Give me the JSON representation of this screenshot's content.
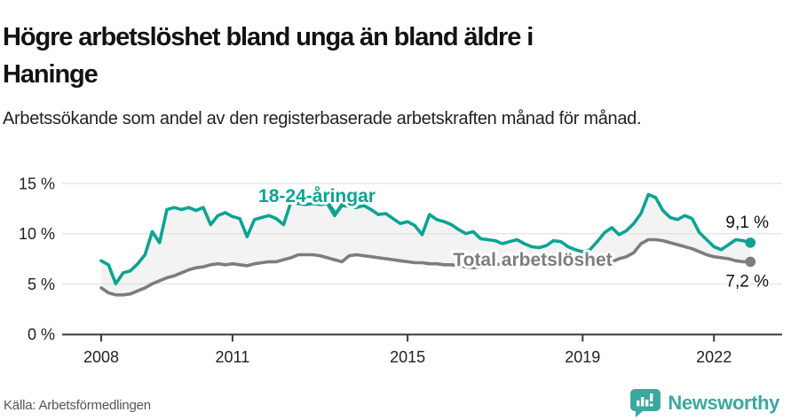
{
  "header": {
    "title": "Högre arbetslöshet bland unga än bland äldre i Haninge",
    "subtitle": "Arbetssökande som andel av den registerbaserade arbetskraften månad för månad."
  },
  "footer": {
    "source": "Källa: Arbetsförmedlingen",
    "brand": "Newsworthy"
  },
  "colors": {
    "youth": "#0ca392",
    "total": "#7d7d7d",
    "band_fill": "#f3f3f3",
    "gridline": "#e0e0e0",
    "axis": "#3a3a3a",
    "tick_text": "#222222",
    "value_text": "#111111",
    "brand_teal": "#3ba89f"
  },
  "chart_data": {
    "type": "line",
    "x_start": 2008.0,
    "x_step": 0.166667,
    "xlim": [
      2008,
      2022.85
    ],
    "ylim": [
      0,
      15.5
    ],
    "grid": true,
    "x_axis": {
      "ticks": [
        2008,
        2011,
        2015,
        2019,
        2022
      ],
      "labels": [
        "2008",
        "2011",
        "2015",
        "2019",
        "2022"
      ]
    },
    "y_axis": {
      "ticks": [
        0,
        5,
        10,
        15
      ],
      "labels": [
        "0 %",
        "5 %",
        "10 %",
        "15 %"
      ]
    },
    "series": [
      {
        "name": "18-24-åringar",
        "end_label": "9,1 %",
        "values": [
          7.3,
          6.9,
          5.0,
          6.1,
          6.3,
          7.0,
          7.9,
          10.2,
          9.1,
          12.4,
          12.6,
          12.4,
          12.6,
          12.3,
          12.6,
          10.9,
          11.8,
          12.1,
          11.7,
          11.5,
          9.7,
          11.4,
          11.6,
          11.8,
          11.5,
          10.9,
          13.1,
          13.0,
          12.9,
          13.0,
          12.9,
          13.0,
          11.8,
          12.8,
          12.7,
          12.6,
          12.8,
          12.4,
          11.9,
          12.0,
          11.5,
          11.0,
          11.2,
          10.8,
          9.9,
          11.9,
          11.4,
          11.2,
          10.9,
          10.4,
          10.0,
          10.2,
          9.5,
          9.4,
          9.3,
          9.0,
          9.2,
          9.4,
          9.0,
          8.7,
          8.6,
          8.8,
          9.3,
          9.2,
          8.7,
          8.4,
          8.2,
          8.4,
          9.2,
          10.1,
          10.6,
          9.9,
          10.3,
          11.0,
          12.0,
          13.9,
          13.6,
          12.3,
          11.6,
          11.4,
          11.8,
          11.5,
          10.1,
          9.4,
          8.7,
          8.4,
          8.9,
          9.4,
          9.3,
          9.1
        ]
      },
      {
        "name": "Total arbetslöshet",
        "end_label": "7,2 %",
        "values": [
          4.6,
          4.1,
          3.9,
          3.9,
          4.0,
          4.3,
          4.6,
          5.0,
          5.3,
          5.6,
          5.8,
          6.1,
          6.4,
          6.6,
          6.7,
          6.9,
          7.0,
          6.9,
          7.0,
          6.9,
          6.8,
          7.0,
          7.1,
          7.2,
          7.2,
          7.4,
          7.6,
          7.9,
          7.9,
          7.9,
          7.8,
          7.6,
          7.4,
          7.2,
          7.8,
          7.9,
          7.8,
          7.7,
          7.6,
          7.5,
          7.4,
          7.3,
          7.2,
          7.1,
          7.1,
          7.0,
          7.0,
          6.9,
          6.9,
          6.8,
          6.7,
          6.6,
          6.7,
          6.8,
          6.9,
          7.0,
          7.1,
          7.1,
          7.2,
          7.2,
          7.2,
          7.2,
          7.3,
          7.3,
          7.2,
          7.3,
          7.3,
          7.3,
          7.4,
          7.5,
          7.2,
          7.5,
          7.7,
          8.1,
          9.0,
          9.4,
          9.4,
          9.3,
          9.1,
          8.9,
          8.7,
          8.5,
          8.2,
          7.9,
          7.7,
          7.6,
          7.5,
          7.3,
          7.2,
          7.2
        ]
      }
    ]
  }
}
